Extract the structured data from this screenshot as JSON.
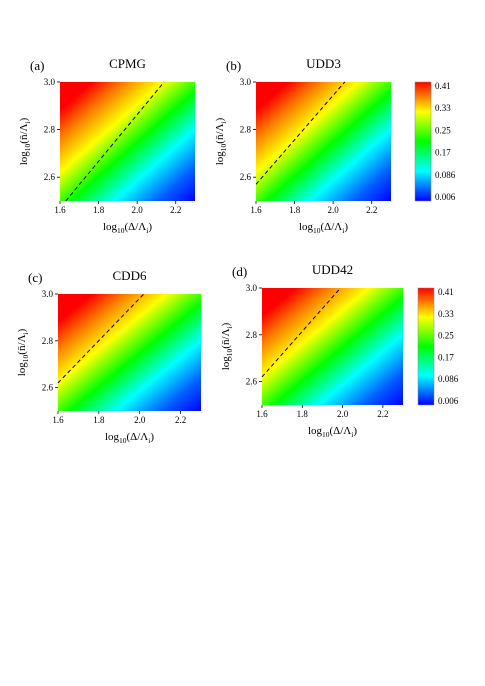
{
  "chart_data": [
    {
      "type": "heatmap",
      "panel_label": "(a)",
      "title": "CPMG",
      "xlabel": "log10(Δ/Λi)",
      "ylabel": "log10(n̄/Λi)",
      "xlim": [
        1.6,
        2.3
      ],
      "ylim": [
        2.5,
        3.0
      ],
      "xticks": [
        1.6,
        1.8,
        2.0,
        2.2
      ],
      "xtick_labels": [
        "1.6",
        "1.8",
        "2.0",
        "2.2"
      ],
      "yticks": [
        2.6,
        2.8,
        3.0
      ],
      "ytick_labels": [
        "2.6",
        "2.8",
        "3.0"
      ],
      "dashed_line": [
        [
          1.63,
          2.5
        ],
        [
          2.14,
          3.0
        ]
      ],
      "colorbar": false
    },
    {
      "type": "heatmap",
      "panel_label": "(b)",
      "title": "UDD3",
      "xlabel": "log10(Δ/Λi)",
      "ylabel": "log10(n̄/Λi)",
      "xlim": [
        1.6,
        2.3
      ],
      "ylim": [
        2.5,
        3.0
      ],
      "xticks": [
        1.6,
        1.8,
        2.0,
        2.2
      ],
      "xtick_labels": [
        "1.6",
        "1.8",
        "2.0",
        "2.2"
      ],
      "yticks": [
        2.6,
        2.8,
        3.0
      ],
      "ytick_labels": [
        "2.6",
        "2.8",
        "3.0"
      ],
      "dashed_line": [
        [
          1.6,
          2.57
        ],
        [
          2.06,
          3.0
        ]
      ],
      "colorbar": true,
      "colorbar_ticks": [
        "0.41",
        "0.33",
        "0.25",
        "0.17",
        "0.086",
        "0.006"
      ]
    },
    {
      "type": "heatmap",
      "panel_label": "(c)",
      "title": "CDD6",
      "xlabel": "log10(Δ/Λi)",
      "ylabel": "log10(n̄/Λi)",
      "xlim": [
        1.6,
        2.3
      ],
      "ylim": [
        2.5,
        3.0
      ],
      "xticks": [
        1.6,
        1.8,
        2.0,
        2.2
      ],
      "xtick_labels": [
        "1.6",
        "1.8",
        "2.0",
        "2.2"
      ],
      "yticks": [
        2.6,
        2.8,
        3.0
      ],
      "ytick_labels": [
        "2.6",
        "2.8",
        "3.0"
      ],
      "dashed_line": [
        [
          1.6,
          2.62
        ],
        [
          2.02,
          3.0
        ]
      ],
      "colorbar": false
    },
    {
      "type": "heatmap",
      "panel_label": "(d)",
      "title": "UDD42",
      "xlabel": "log10(Δ/Λi)",
      "ylabel": "log10(n̄/Λi)",
      "xlim": [
        1.6,
        2.3
      ],
      "ylim": [
        2.5,
        3.0
      ],
      "xticks": [
        1.6,
        1.8,
        2.0,
        2.2
      ],
      "xtick_labels": [
        "1.6",
        "1.8",
        "2.0",
        "2.2"
      ],
      "yticks": [
        2.6,
        2.8,
        3.0
      ],
      "ytick_labels": [
        "2.6",
        "2.8",
        "3.0"
      ],
      "dashed_line": [
        [
          1.6,
          2.62
        ],
        [
          1.99,
          3.0
        ]
      ],
      "colorbar": true,
      "colorbar_ticks": [
        "0.41",
        "0.33",
        "0.25",
        "0.17",
        "0.086",
        "0.006"
      ]
    }
  ],
  "colors": {
    "colormap": [
      "#0000ff",
      "#00ffff",
      "#00ff00",
      "#ffff00",
      "#ff0000"
    ]
  }
}
